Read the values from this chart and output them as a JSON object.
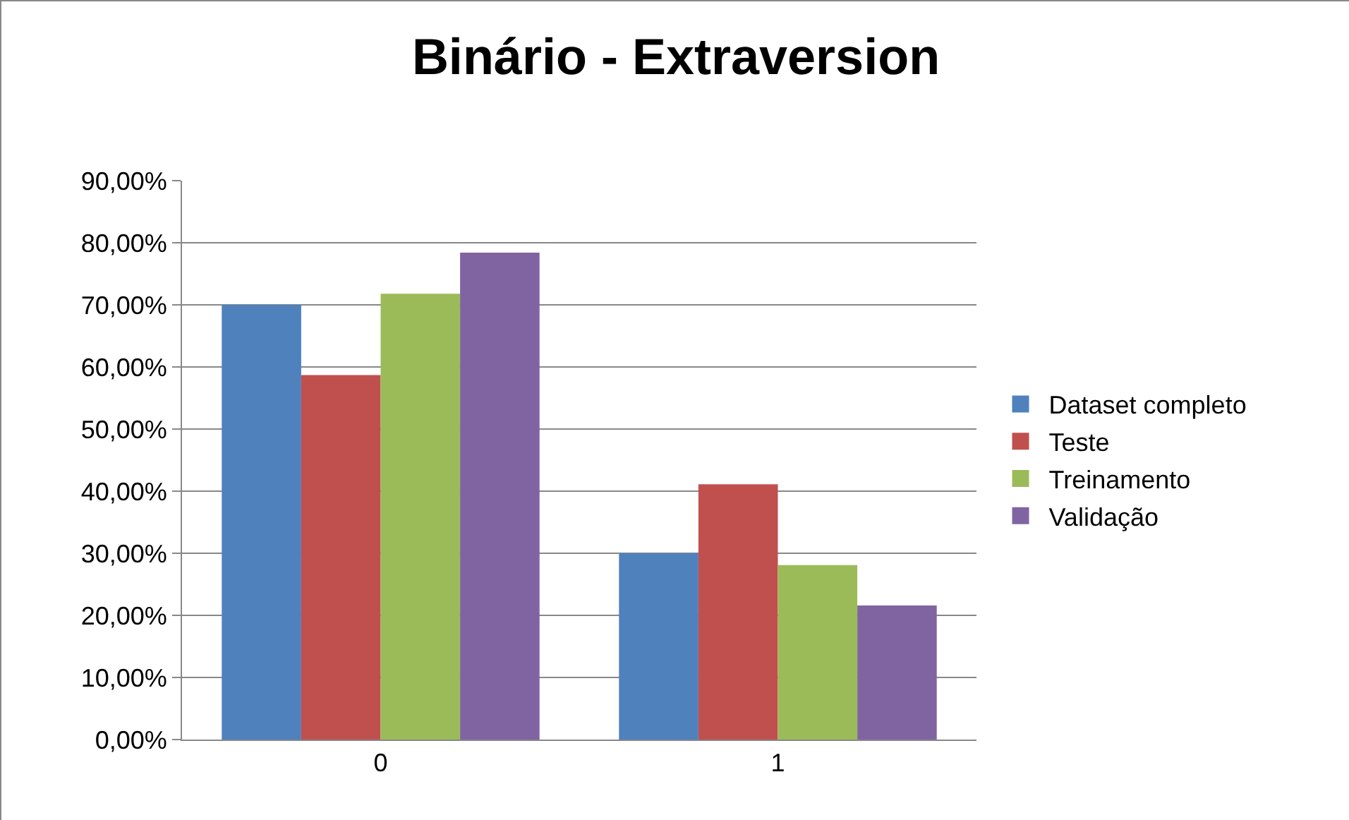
{
  "chart_data": {
    "type": "bar",
    "title": "Binário - Extraversion",
    "categories": [
      "0",
      "1"
    ],
    "series": [
      {
        "name": "Dataset completo",
        "color": "#4f81bd",
        "values": [
          70.0,
          30.0
        ]
      },
      {
        "name": "Teste",
        "color": "#c0504d",
        "values": [
          58.7,
          41.1
        ]
      },
      {
        "name": "Treinamento",
        "color": "#9bbb59",
        "values": [
          71.8,
          28.1
        ]
      },
      {
        "name": "Validação",
        "color": "#8064a2",
        "values": [
          78.4,
          21.6
        ]
      }
    ],
    "ylim": [
      0,
      90
    ],
    "yticks": [
      {
        "value": 0,
        "label": "0,00%"
      },
      {
        "value": 10,
        "label": "10,00%"
      },
      {
        "value": 20,
        "label": "20,00%"
      },
      {
        "value": 30,
        "label": "30,00%"
      },
      {
        "value": 40,
        "label": "40,00%"
      },
      {
        "value": 50,
        "label": "50,00%"
      },
      {
        "value": 60,
        "label": "60,00%"
      },
      {
        "value": 70,
        "label": "70,00%"
      },
      {
        "value": 80,
        "label": "80,00%"
      },
      {
        "value": 90,
        "label": "90,00%"
      }
    ],
    "grid": "y",
    "legend": "right"
  }
}
